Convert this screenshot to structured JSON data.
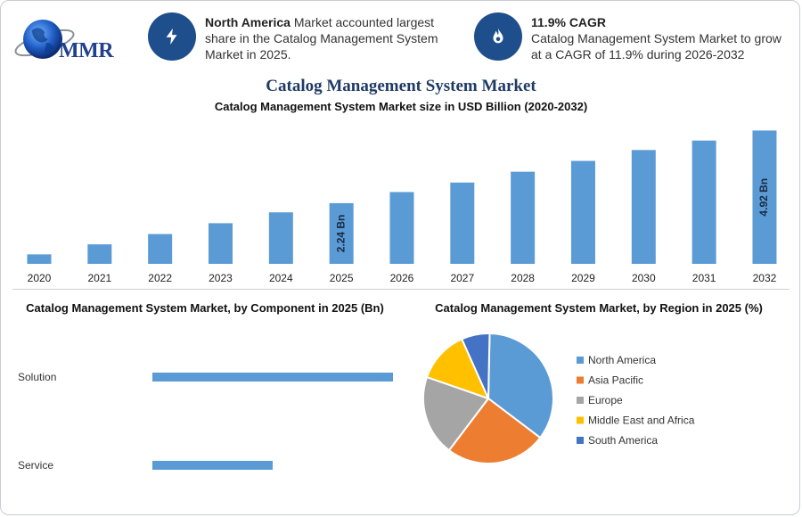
{
  "logo": {
    "text": "MMR"
  },
  "info_cards": [
    {
      "icon": "lightning-icon",
      "title": "North America",
      "text": " Market accounted largest share in the Catalog Management System Market in 2025."
    },
    {
      "icon": "flame-icon",
      "title": "11.9% CAGR",
      "text": "Catalog Management System Market to grow at a CAGR of 11.9% during 2026-2032"
    }
  ],
  "main_title": "Catalog Management System Market",
  "colors": {
    "bar": "#5b9bd5",
    "hbar": "#5b9bd5",
    "icon_bg": "#1f4e8c",
    "title": "#1f3a66"
  },
  "chart_data": [
    {
      "type": "bar",
      "title": "Catalog Management System Market size in USD Billion (2020-2032)",
      "categories": [
        "2020",
        "2021",
        "2022",
        "2023",
        "2024",
        "2025",
        "2026",
        "2027",
        "2028",
        "2029",
        "2030",
        "2031",
        "2032"
      ],
      "values": [
        0.35,
        0.72,
        1.1,
        1.5,
        1.9,
        2.24,
        2.65,
        3.0,
        3.4,
        3.8,
        4.2,
        4.55,
        4.92
      ],
      "data_labels": [
        {
          "index": 5,
          "text": "2.24 Bn"
        },
        {
          "index": 12,
          "text": "4.92 Bn"
        }
      ],
      "ylim": [
        0,
        5
      ],
      "xlabel": "",
      "ylabel": "",
      "grid": false
    },
    {
      "type": "bar",
      "orientation": "horizontal",
      "title": "Catalog Management System Market, by Component in 2025 (Bn)",
      "categories": [
        "Solution",
        "Service"
      ],
      "values": [
        1.5,
        0.75
      ],
      "xlim": [
        0,
        1.5
      ]
    },
    {
      "type": "pie",
      "title": "Catalog Management System Market, by Region in 2025 (%)",
      "labels": [
        "North America",
        "Asia Pacific",
        "Europe",
        "Middle East and Africa",
        "South America"
      ],
      "values": [
        35,
        25,
        20,
        13,
        7
      ],
      "colors": [
        "#5b9bd5",
        "#ed7d31",
        "#a5a5a5",
        "#ffc000",
        "#4472c4"
      ],
      "legend": "right"
    }
  ]
}
